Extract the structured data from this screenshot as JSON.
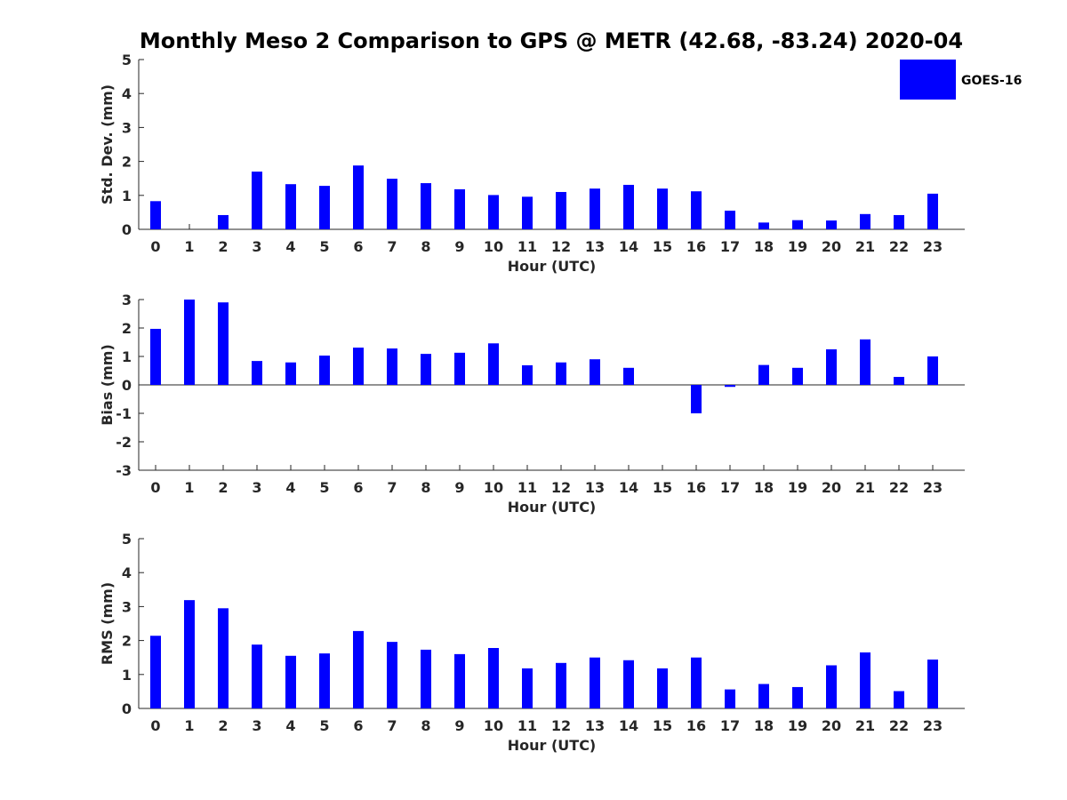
{
  "figure_title": "Monthly Meso 2 Comparison to GPS @ METR (42.68, -83.24) 2020-04",
  "legend": {
    "label": "GOES-16",
    "color": "#0000ff"
  },
  "chart_data": [
    {
      "type": "bar",
      "xlabel": "Hour (UTC)",
      "ylabel": "Std. Dev. (mm)",
      "ylim": [
        0,
        5
      ],
      "yticks": [
        0,
        1,
        2,
        3,
        4,
        5
      ],
      "categories": [
        "0",
        "1",
        "2",
        "3",
        "4",
        "5",
        "6",
        "7",
        "8",
        "9",
        "10",
        "11",
        "12",
        "13",
        "14",
        "15",
        "16",
        "17",
        "18",
        "19",
        "20",
        "21",
        "22",
        "23"
      ],
      "series": [
        {
          "name": "GOES-16",
          "color": "#0000ff",
          "values": [
            0.83,
            0.0,
            0.42,
            1.7,
            1.33,
            1.28,
            1.88,
            1.49,
            1.36,
            1.18,
            1.01,
            0.96,
            1.1,
            1.2,
            1.31,
            1.2,
            1.12,
            0.55,
            0.2,
            0.27,
            0.26,
            0.45,
            0.42,
            1.05
          ]
        }
      ],
      "legend": "top-right"
    },
    {
      "type": "bar",
      "xlabel": "Hour (UTC)",
      "ylabel": "Bias (mm)",
      "ylim": [
        -3,
        3
      ],
      "yticks": [
        -3,
        -2,
        -1,
        0,
        1,
        2,
        3
      ],
      "categories": [
        "0",
        "1",
        "2",
        "3",
        "4",
        "5",
        "6",
        "7",
        "8",
        "9",
        "10",
        "11",
        "12",
        "13",
        "14",
        "15",
        "16",
        "17",
        "18",
        "19",
        "20",
        "21",
        "22",
        "23"
      ],
      "series": [
        {
          "name": "GOES-16",
          "color": "#0000ff",
          "values": [
            1.97,
            3.0,
            2.9,
            0.84,
            0.79,
            1.03,
            1.31,
            1.28,
            1.09,
            1.13,
            1.46,
            0.69,
            0.79,
            0.9,
            0.6,
            0.0,
            -1.0,
            -0.07,
            0.7,
            0.6,
            1.25,
            1.6,
            0.28,
            1.0
          ]
        }
      ]
    },
    {
      "type": "bar",
      "xlabel": "Hour (UTC)",
      "ylabel": "RMS (mm)",
      "ylim": [
        0,
        5
      ],
      "yticks": [
        0,
        1,
        2,
        3,
        4,
        5
      ],
      "categories": [
        "0",
        "1",
        "2",
        "3",
        "4",
        "5",
        "6",
        "7",
        "8",
        "9",
        "10",
        "11",
        "12",
        "13",
        "14",
        "15",
        "16",
        "17",
        "18",
        "19",
        "20",
        "21",
        "22",
        "23"
      ],
      "series": [
        {
          "name": "GOES-16",
          "color": "#0000ff",
          "values": [
            2.14,
            3.19,
            2.95,
            1.88,
            1.55,
            1.62,
            2.28,
            1.96,
            1.73,
            1.6,
            1.78,
            1.18,
            1.34,
            1.5,
            1.42,
            1.18,
            1.5,
            0.56,
            0.72,
            0.63,
            1.27,
            1.65,
            0.51,
            1.44
          ]
        }
      ]
    }
  ]
}
